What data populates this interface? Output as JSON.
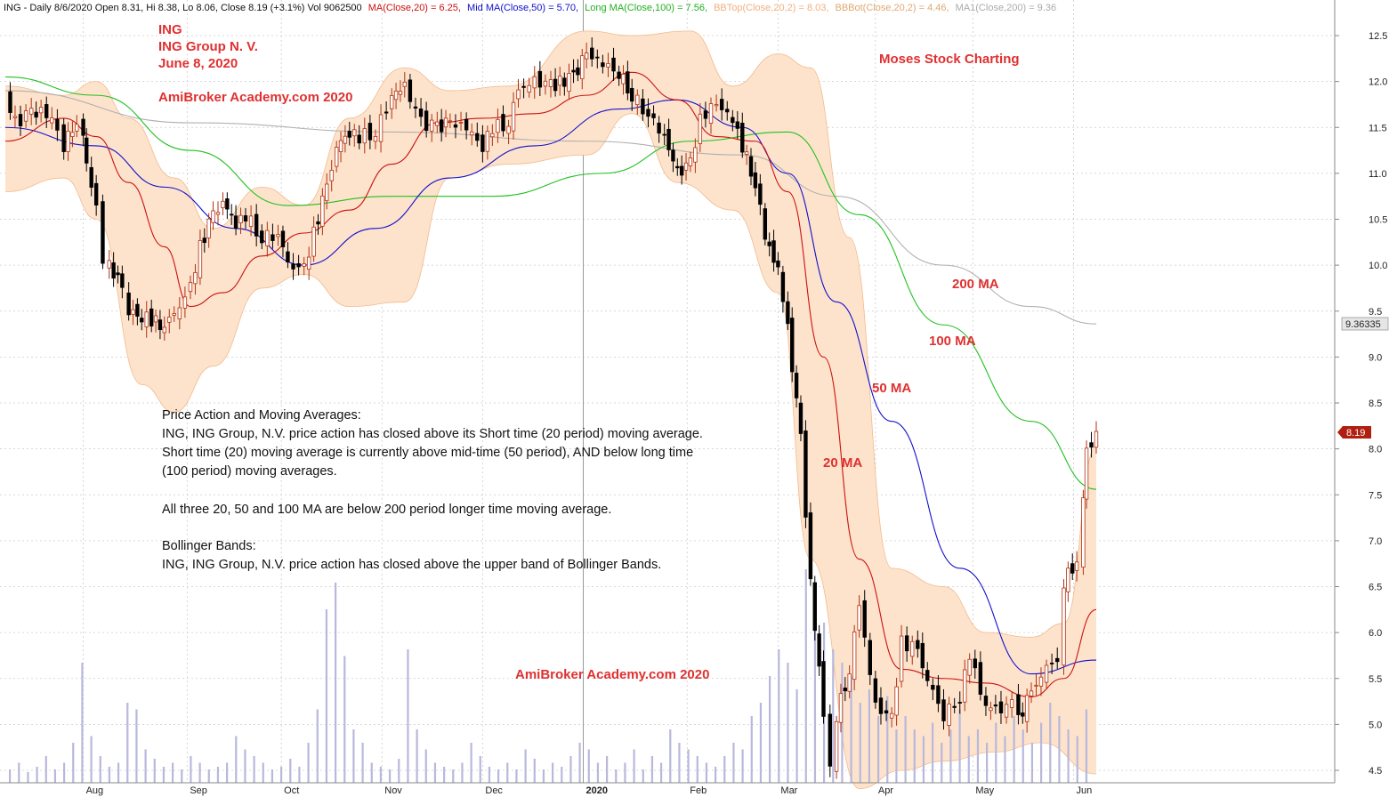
{
  "header": {
    "symbol_line": "ING - Daily 8/6/2020 Open 8.31, Hi 8.38, Lo 8.06, Close 8.19 (+3.1%) Vol 9062500",
    "ma20": "MA(Close,20) = 6.25,",
    "ma50": "Mid MA(Close,50) = 5.70,",
    "ma100": "Long MA(Close,100) = 7.56,",
    "bbtop": "BBTop(Close,20,2) = 8.03,",
    "bbbot": "BBBot(Close,20,2) = 4.46,",
    "ma200": "MA1(Close,200) = 9.36"
  },
  "annotations": {
    "ticker": "ING",
    "company": "ING Group N. V.",
    "date": "June 8, 2020",
    "watermark_top": "AmiBroker Academy.com  2020",
    "watermark_bottom": "AmiBroker Academy.com  2020",
    "moses": "Moses Stock Charting",
    "label_200": "200 MA",
    "label_100": "100 MA",
    "label_50": "50 MA",
    "label_20": "20 MA"
  },
  "commentary": {
    "line1": "Price Action and Moving Averages:",
    "line2": "ING, ING Group, N.V. price action has closed above its Short time (20 period) moving average.",
    "line3": "Short time (20) moving average is currently above mid-time (50 period), AND below long time",
    "line4": "(100 period) moving averages.",
    "line5": "All three 20, 50 and 100 MA are below 200 period longer time moving average.",
    "line6": "Bollinger Bands:",
    "line7": "ING, ING Group, N.V. price action has closed above the upper band of Bollinger Bands."
  },
  "badges": {
    "ma200_value": "9.36335",
    "close_value": "8.19"
  },
  "colors": {
    "ma20": "#cc1111",
    "ma50": "#1010cc",
    "ma100": "#20c020",
    "ma200": "#b0b0b0",
    "band_fill": "#fde3cc",
    "band_edge": "#f3b98a",
    "volume": "#b8b8dd",
    "bull_candle": "#b03010",
    "bear_candle": "#000000",
    "annotation_red": "#e03030",
    "close_badge": "#b02010"
  },
  "chart_data": {
    "type": "candlestick",
    "y_axis": {
      "min": 4.3,
      "max": 12.7,
      "ticks": [
        "12.5",
        "12.0",
        "11.5",
        "11.0",
        "10.5",
        "10.0",
        "9.5",
        "9.0",
        "8.5",
        "8.0",
        "7.5",
        "7.0",
        "6.5",
        "6.0",
        "5.5",
        "5.0",
        "4.5"
      ]
    },
    "x_axis": {
      "start": "2019-07-08",
      "end": "2020-06-08",
      "months": [
        {
          "label": "Aug",
          "date": "2019-08-01"
        },
        {
          "label": "Sep",
          "date": "2019-09-02"
        },
        {
          "label": "Oct",
          "date": "2019-10-01"
        },
        {
          "label": "Nov",
          "date": "2019-11-01"
        },
        {
          "label": "Dec",
          "date": "2019-12-02"
        },
        {
          "label": "2020",
          "date": "2020-01-02"
        },
        {
          "label": "Feb",
          "date": "2020-02-03"
        },
        {
          "label": "Mar",
          "date": "2020-03-02"
        },
        {
          "label": "Apr",
          "date": "2020-04-01"
        },
        {
          "label": "May",
          "date": "2020-05-01"
        },
        {
          "label": "Jun",
          "date": "2020-06-01"
        }
      ]
    },
    "grid": true,
    "close_series": [
      [
        "2019-07-08",
        11.85
      ],
      [
        "2019-07-11",
        11.55
      ],
      [
        "2019-07-16",
        11.65
      ],
      [
        "2019-07-19",
        11.7
      ],
      [
        "2019-07-24",
        11.5
      ],
      [
        "2019-07-26",
        11.3
      ],
      [
        "2019-07-30",
        11.6
      ],
      [
        "2019-08-01",
        11.45
      ],
      [
        "2019-08-02",
        11.1
      ],
      [
        "2019-08-05",
        10.6
      ],
      [
        "2019-08-07",
        9.95
      ],
      [
        "2019-08-09",
        10.0
      ],
      [
        "2019-08-13",
        9.75
      ],
      [
        "2019-08-15",
        9.5
      ],
      [
        "2019-08-19",
        9.45
      ],
      [
        "2019-08-22",
        9.4
      ],
      [
        "2019-08-26",
        9.35
      ],
      [
        "2019-08-29",
        9.45
      ],
      [
        "2019-09-03",
        9.75
      ],
      [
        "2019-09-06",
        10.2
      ],
      [
        "2019-09-10",
        10.55
      ],
      [
        "2019-09-13",
        10.7
      ],
      [
        "2019-09-17",
        10.45
      ],
      [
        "2019-09-20",
        10.55
      ],
      [
        "2019-09-25",
        10.3
      ],
      [
        "2019-09-30",
        10.35
      ],
      [
        "2019-10-03",
        10.0
      ],
      [
        "2019-10-08",
        9.95
      ],
      [
        "2019-10-11",
        10.35
      ],
      [
        "2019-10-15",
        10.85
      ],
      [
        "2019-10-18",
        11.3
      ],
      [
        "2019-10-22",
        11.45
      ],
      [
        "2019-10-25",
        11.4
      ],
      [
        "2019-10-30",
        11.45
      ],
      [
        "2019-11-04",
        11.85
      ],
      [
        "2019-11-08",
        11.95
      ],
      [
        "2019-11-13",
        11.55
      ],
      [
        "2019-11-18",
        11.5
      ],
      [
        "2019-11-22",
        11.55
      ],
      [
        "2019-11-27",
        11.5
      ],
      [
        "2019-12-02",
        11.3
      ],
      [
        "2019-12-05",
        11.5
      ],
      [
        "2019-12-10",
        11.55
      ],
      [
        "2019-12-13",
        11.9
      ],
      [
        "2019-12-18",
        12.0
      ],
      [
        "2019-12-23",
        11.95
      ],
      [
        "2019-12-30",
        12.05
      ],
      [
        "2020-01-03",
        12.3
      ],
      [
        "2020-01-08",
        12.2
      ],
      [
        "2020-01-13",
        12.1
      ],
      [
        "2020-01-17",
        11.85
      ],
      [
        "2020-01-22",
        11.65
      ],
      [
        "2020-01-27",
        11.4
      ],
      [
        "2020-01-31",
        11.0
      ],
      [
        "2020-02-04",
        11.1
      ],
      [
        "2020-02-07",
        11.6
      ],
      [
        "2020-02-12",
        11.75
      ],
      [
        "2020-02-17",
        11.6
      ],
      [
        "2020-02-20",
        11.3
      ],
      [
        "2020-02-24",
        10.9
      ],
      [
        "2020-02-27",
        10.3
      ],
      [
        "2020-03-02",
        9.95
      ],
      [
        "2020-03-05",
        9.3
      ],
      [
        "2020-03-09",
        8.1
      ],
      [
        "2020-03-12",
        6.55
      ],
      [
        "2020-03-16",
        5.1
      ],
      [
        "2020-03-18",
        4.6
      ],
      [
        "2020-03-20",
        5.1
      ],
      [
        "2020-03-24",
        5.6
      ],
      [
        "2020-03-27",
        6.3
      ],
      [
        "2020-04-01",
        5.2
      ],
      [
        "2020-04-06",
        5.05
      ],
      [
        "2020-04-09",
        5.9
      ],
      [
        "2020-04-14",
        5.8
      ],
      [
        "2020-04-17",
        5.5
      ],
      [
        "2020-04-22",
        5.1
      ],
      [
        "2020-04-27",
        5.3
      ],
      [
        "2020-04-30",
        5.75
      ],
      [
        "2020-05-05",
        5.2
      ],
      [
        "2020-05-08",
        5.15
      ],
      [
        "2020-05-13",
        5.2
      ],
      [
        "2020-05-15",
        5.05
      ],
      [
        "2020-05-19",
        5.35
      ],
      [
        "2020-05-22",
        5.55
      ],
      [
        "2020-05-27",
        5.75
      ],
      [
        "2020-05-29",
        6.55
      ],
      [
        "2020-06-02",
        6.8
      ],
      [
        "2020-06-04",
        7.45
      ],
      [
        "2020-06-05",
        7.95
      ],
      [
        "2020-06-08",
        8.19
      ]
    ],
    "ma20_series": [
      [
        "2019-07-08",
        11.35
      ],
      [
        "2019-07-26",
        11.6
      ],
      [
        "2019-08-05",
        11.4
      ],
      [
        "2019-08-15",
        10.9
      ],
      [
        "2019-08-26",
        10.2
      ],
      [
        "2019-09-03",
        9.55
      ],
      [
        "2019-09-13",
        9.7
      ],
      [
        "2019-09-25",
        10.1
      ],
      [
        "2019-10-08",
        10.35
      ],
      [
        "2019-10-22",
        10.6
      ],
      [
        "2019-11-04",
        11.1
      ],
      [
        "2019-11-18",
        11.55
      ],
      [
        "2019-12-02",
        11.6
      ],
      [
        "2019-12-18",
        11.65
      ],
      [
        "2020-01-03",
        11.85
      ],
      [
        "2020-01-17",
        12.1
      ],
      [
        "2020-01-31",
        11.8
      ],
      [
        "2020-02-12",
        11.4
      ],
      [
        "2020-02-24",
        11.35
      ],
      [
        "2020-03-05",
        10.8
      ],
      [
        "2020-03-16",
        9.0
      ],
      [
        "2020-03-27",
        6.8
      ],
      [
        "2020-04-09",
        5.6
      ],
      [
        "2020-04-22",
        5.5
      ],
      [
        "2020-05-05",
        5.45
      ],
      [
        "2020-05-19",
        5.3
      ],
      [
        "2020-05-29",
        5.5
      ],
      [
        "2020-06-08",
        6.25
      ]
    ],
    "ma50_series": [
      [
        "2019-07-08",
        11.5
      ],
      [
        "2019-08-05",
        11.3
      ],
      [
        "2019-08-26",
        10.85
      ],
      [
        "2019-09-17",
        10.4
      ],
      [
        "2019-10-08",
        10.0
      ],
      [
        "2019-10-30",
        10.4
      ],
      [
        "2019-11-22",
        10.95
      ],
      [
        "2019-12-18",
        11.3
      ],
      [
        "2020-01-13",
        11.7
      ],
      [
        "2020-01-31",
        11.8
      ],
      [
        "2020-02-20",
        11.5
      ],
      [
        "2020-03-05",
        11.0
      ],
      [
        "2020-03-20",
        9.6
      ],
      [
        "2020-04-06",
        8.3
      ],
      [
        "2020-04-27",
        6.7
      ],
      [
        "2020-05-19",
        5.55
      ],
      [
        "2020-06-08",
        5.7
      ]
    ],
    "ma100_series": [
      [
        "2019-07-08",
        12.05
      ],
      [
        "2019-08-05",
        11.85
      ],
      [
        "2019-09-03",
        11.25
      ],
      [
        "2019-10-03",
        10.65
      ],
      [
        "2019-11-04",
        10.75
      ],
      [
        "2019-12-05",
        10.75
      ],
      [
        "2020-01-08",
        11.0
      ],
      [
        "2020-02-04",
        11.35
      ],
      [
        "2020-03-05",
        11.45
      ],
      [
        "2020-03-27",
        10.55
      ],
      [
        "2020-04-22",
        9.35
      ],
      [
        "2020-05-19",
        8.3
      ],
      [
        "2020-06-08",
        7.56
      ]
    ],
    "ma200_series": [
      [
        "2019-07-08",
        11.9
      ],
      [
        "2019-09-03",
        11.55
      ],
      [
        "2019-11-04",
        11.45
      ],
      [
        "2020-01-03",
        11.35
      ],
      [
        "2020-02-20",
        11.2
      ],
      [
        "2020-03-20",
        10.75
      ],
      [
        "2020-04-22",
        10.0
      ],
      [
        "2020-05-19",
        9.55
      ],
      [
        "2020-06-08",
        9.36
      ]
    ],
    "bb_upper": [
      [
        "2019-07-08",
        11.95
      ],
      [
        "2019-07-26",
        11.85
      ],
      [
        "2019-08-05",
        12.0
      ],
      [
        "2019-08-15",
        11.6
      ],
      [
        "2019-08-29",
        10.95
      ],
      [
        "2019-09-10",
        10.4
      ],
      [
        "2019-09-25",
        10.85
      ],
      [
        "2019-10-08",
        10.65
      ],
      [
        "2019-10-22",
        11.6
      ],
      [
        "2019-11-08",
        12.15
      ],
      [
        "2019-11-22",
        11.9
      ],
      [
        "2019-12-10",
        11.95
      ],
      [
        "2020-01-03",
        12.55
      ],
      [
        "2020-01-17",
        12.5
      ],
      [
        "2020-02-04",
        12.55
      ],
      [
        "2020-02-17",
        11.95
      ],
      [
        "2020-03-02",
        12.3
      ],
      [
        "2020-03-12",
        12.15
      ],
      [
        "2020-03-24",
        10.3
      ],
      [
        "2020-04-06",
        6.7
      ],
      [
        "2020-04-22",
        6.5
      ],
      [
        "2020-05-05",
        6.0
      ],
      [
        "2020-05-19",
        5.95
      ],
      [
        "2020-05-29",
        6.1
      ],
      [
        "2020-06-08",
        8.03
      ]
    ],
    "bb_lower": [
      [
        "2019-07-08",
        10.8
      ],
      [
        "2019-07-26",
        10.95
      ],
      [
        "2019-08-05",
        10.5
      ],
      [
        "2019-08-19",
        8.7
      ],
      [
        "2019-08-29",
        8.4
      ],
      [
        "2019-09-10",
        8.9
      ],
      [
        "2019-09-25",
        9.75
      ],
      [
        "2019-10-08",
        9.9
      ],
      [
        "2019-10-22",
        9.55
      ],
      [
        "2019-11-08",
        9.6
      ],
      [
        "2019-11-22",
        10.95
      ],
      [
        "2019-12-10",
        11.1
      ],
      [
        "2020-01-03",
        11.2
      ],
      [
        "2020-01-17",
        11.65
      ],
      [
        "2020-01-31",
        10.9
      ],
      [
        "2020-02-17",
        10.6
      ],
      [
        "2020-03-02",
        9.7
      ],
      [
        "2020-03-12",
        6.8
      ],
      [
        "2020-03-27",
        4.3
      ],
      [
        "2020-04-09",
        4.5
      ],
      [
        "2020-04-22",
        4.6
      ],
      [
        "2020-05-08",
        4.7
      ],
      [
        "2020-05-22",
        4.8
      ],
      [
        "2020-06-08",
        4.46
      ]
    ],
    "volume_levels": [
      0.1,
      0.15,
      0.08,
      0.12,
      0.2,
      0.1,
      0.15,
      0.3,
      0.9,
      0.35,
      0.2,
      0.12,
      0.15,
      0.6,
      0.55,
      0.25,
      0.18,
      0.12,
      0.15,
      0.1,
      0.2,
      0.15,
      0.1,
      0.12,
      0.15,
      0.35,
      0.25,
      0.2,
      0.15,
      0.1,
      0.12,
      0.18,
      0.12,
      0.3,
      0.55,
      1.3,
      1.5,
      0.95,
      0.4,
      0.3,
      0.15,
      0.12,
      0.1,
      0.18,
      1.0,
      0.4,
      0.25,
      0.15,
      0.12,
      0.1,
      0.15,
      0.3,
      0.2,
      0.12,
      0.1,
      0.15,
      0.1,
      0.25,
      0.18,
      0.1,
      0.15,
      0.12,
      0.2,
      0.3,
      0.25,
      0.15,
      0.2,
      0.1,
      0.15,
      0.25,
      0.1,
      0.2,
      0.15,
      0.4,
      0.3,
      0.25,
      0.2,
      0.15,
      0.12,
      0.2,
      0.3,
      0.25,
      0.5,
      0.6,
      0.8,
      1.0,
      0.9,
      0.7,
      1.6,
      1.45,
      1.2,
      1.0,
      0.9,
      0.8,
      0.6,
      0.7,
      0.5,
      0.65,
      0.4,
      0.5,
      0.4,
      0.35,
      0.45,
      0.3,
      0.4,
      0.55,
      0.35,
      0.4,
      0.3,
      0.45,
      0.35,
      0.5,
      0.4,
      0.3,
      0.45,
      0.6,
      0.5,
      0.4,
      0.35,
      0.55
    ]
  }
}
